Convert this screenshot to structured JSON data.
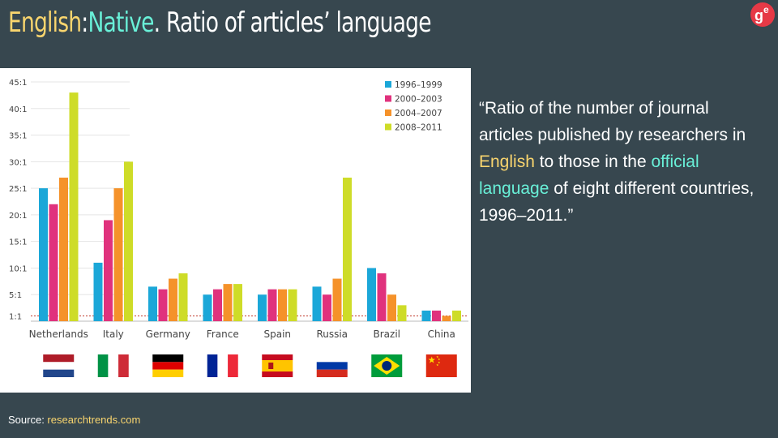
{
  "header": {
    "title_english": "English",
    "title_colon": ":",
    "title_native": "Native",
    "title_rest": ". Ratio of articles’ language"
  },
  "logo": {
    "icon": "ge-logo",
    "letter_g": "g",
    "letter_e": "e",
    "color": "#e63946"
  },
  "quote": {
    "part1": "“Ratio of the number of journal articles published by researchers in ",
    "highlight1": "English",
    "part2": " to those in the ",
    "highlight2": "official language",
    "part3": " of eight different countries, 1996–2011.”"
  },
  "source": {
    "label": "Source: ",
    "link": "researchtrends.com"
  },
  "colors": {
    "background": "#37474f",
    "english": "#f9d56e",
    "native": "#69f0d8"
  },
  "chart_data": {
    "type": "bar",
    "categories": [
      "Netherlands",
      "Italy",
      "Germany",
      "France",
      "Spain",
      "Russia",
      "Brazil",
      "China"
    ],
    "series": [
      {
        "name": "1996–1999",
        "color": "#1ba7d8",
        "values": [
          25,
          11,
          6.5,
          5,
          5,
          6.5,
          10,
          2
        ]
      },
      {
        "name": "2000–2003",
        "color": "#e0327d",
        "values": [
          22,
          19,
          6,
          6,
          6,
          5,
          9,
          2
        ]
      },
      {
        "name": "2004–2007",
        "color": "#f5922a",
        "values": [
          27,
          25,
          8,
          7,
          6,
          8,
          5,
          1
        ]
      },
      {
        "name": "2008–2011",
        "color": "#cedc28",
        "values": [
          43,
          30,
          9,
          7,
          6,
          27,
          3,
          2
        ]
      }
    ],
    "y_ticks": [
      "1:1",
      "5:1",
      "10:1",
      "15:1",
      "20:1",
      "25:1",
      "30:1",
      "35:1",
      "40:1",
      "45:1"
    ],
    "y_tick_values": [
      1,
      5,
      10,
      15,
      20,
      25,
      30,
      35,
      40,
      45
    ],
    "ylim": [
      0,
      45
    ],
    "reference_line": 1,
    "flags": [
      "netherlands-flag",
      "italy-flag",
      "germany-flag",
      "france-flag",
      "spain-flag",
      "russia-flag",
      "brazil-flag",
      "china-flag"
    ],
    "legend_position": "top-right",
    "grid": "horizontal"
  }
}
